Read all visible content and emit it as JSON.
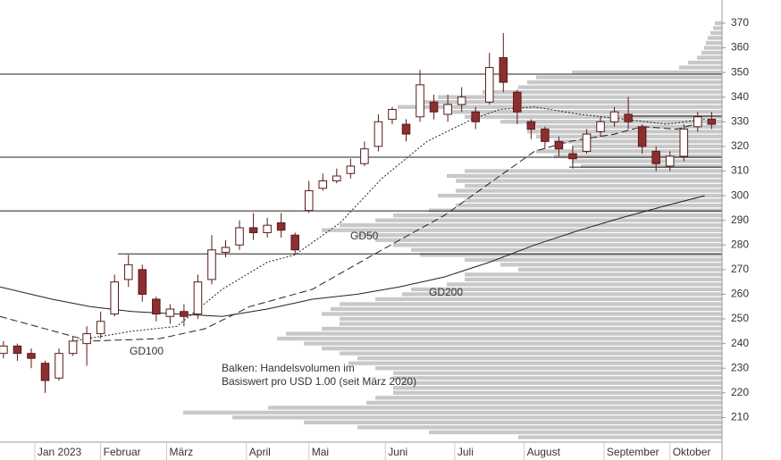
{
  "chart_data": {
    "type": "candlestick",
    "xlim": [
      0,
      208
    ],
    "ylim": [
      200,
      379.4
    ],
    "xticks": [
      {
        "value": 10,
        "label": "Jan 2023"
      },
      {
        "value": 29,
        "label": "Februar"
      },
      {
        "value": 48,
        "label": "März"
      },
      {
        "value": 71,
        "label": "April"
      },
      {
        "value": 89,
        "label": "Mai"
      },
      {
        "value": 111,
        "label": "Juni"
      },
      {
        "value": 131,
        "label": "Juli"
      },
      {
        "value": 151,
        "label": "August"
      },
      {
        "value": 174,
        "label": "September"
      },
      {
        "value": 193,
        "label": "Oktober"
      }
    ],
    "yticks": [
      210,
      220,
      230,
      240,
      250,
      260,
      270,
      280,
      290,
      300,
      310,
      320,
      330,
      340,
      350,
      360,
      370
    ],
    "up_color": "#ffffff",
    "down_color": "#8b2f2f",
    "candle_outline": "#5a1a1a",
    "candles": {
      "x": [
        1,
        5,
        9,
        13,
        17,
        21,
        25,
        29,
        33,
        37,
        41,
        45,
        49,
        53,
        57,
        61,
        65,
        69,
        73,
        77,
        81,
        85,
        89,
        93,
        97,
        101,
        105,
        109,
        113,
        117,
        121,
        125,
        129,
        133,
        137,
        141,
        145,
        149,
        153,
        157,
        161,
        165,
        169,
        173,
        177,
        181,
        185,
        189,
        193,
        197,
        201,
        205
      ],
      "open": [
        236,
        239,
        236,
        232,
        226,
        236,
        240,
        244,
        252,
        266,
        270,
        258,
        251,
        253,
        252,
        266,
        277,
        280,
        287,
        285,
        289,
        284,
        294,
        303,
        306,
        309,
        313,
        320,
        331,
        329,
        332,
        338,
        333,
        337,
        334,
        338,
        356,
        342,
        330,
        327,
        322,
        317,
        318,
        326,
        330,
        333,
        328,
        318,
        312,
        316,
        328,
        331
      ],
      "high": [
        241,
        240,
        238,
        233,
        238,
        243,
        247,
        253,
        268,
        276,
        272,
        259,
        256,
        256,
        268,
        284,
        282,
        290,
        293,
        291,
        293,
        285,
        306,
        309,
        311,
        315,
        322,
        333,
        336,
        331,
        351,
        341,
        341,
        344,
        336,
        358,
        366,
        343,
        331,
        328,
        324,
        320,
        327,
        332,
        336,
        340,
        329,
        320,
        318,
        329,
        334,
        334
      ],
      "low": [
        234,
        233,
        230,
        220,
        225,
        235,
        231,
        242,
        251,
        263,
        257,
        249,
        248,
        247,
        250,
        264,
        275,
        278,
        282,
        283,
        283,
        276,
        293,
        302,
        305,
        307,
        312,
        318,
        329,
        322,
        330,
        331,
        330,
        334,
        327,
        337,
        342,
        329,
        323,
        319,
        316,
        311,
        317,
        324,
        328,
        327,
        317,
        310,
        310,
        314,
        326,
        327
      ],
      "close": [
        239,
        236,
        234,
        225,
        236,
        241,
        244,
        249,
        265,
        272,
        260,
        252,
        254,
        251,
        265,
        278,
        279,
        287,
        285,
        288,
        286,
        278,
        302,
        306,
        308,
        312,
        319,
        330,
        335,
        325,
        345,
        334,
        337,
        340,
        330,
        352,
        346,
        334,
        327,
        322,
        319,
        315,
        325,
        330,
        334,
        330,
        320,
        313,
        316,
        327,
        332,
        329
      ]
    },
    "series": [
      {
        "name": "GD50",
        "color": "#222222",
        "dash": "2,2",
        "x": [
          21,
          38,
          51,
          64,
          77,
          85,
          98,
          110,
          123,
          136,
          144,
          154,
          167,
          180,
          192,
          203
        ],
        "values": [
          241,
          245,
          247,
          262,
          273,
          276,
          289,
          307,
          322,
          331,
          335,
          336,
          333,
          331,
          329,
          331
        ]
      },
      {
        "name": "GD100",
        "color": "#222222",
        "dash": "8,4",
        "x": [
          0,
          26,
          46,
          59,
          72,
          90,
          110,
          128,
          141,
          154,
          164,
          177,
          185,
          195,
          203
        ],
        "values": [
          251,
          241,
          242,
          246,
          255,
          262,
          278,
          292,
          305,
          318,
          322,
          325,
          328,
          327,
          330
        ]
      },
      {
        "name": "GD200",
        "color": "#222222",
        "dash": "none",
        "x": [
          0,
          15,
          26,
          38,
          51,
          64,
          77,
          90,
          103,
          115,
          128,
          141,
          154,
          167,
          179,
          192,
          203
        ],
        "values": [
          263,
          258,
          255,
          253,
          252,
          251,
          254,
          258,
          260,
          263,
          267,
          273,
          280,
          286,
          291,
          296,
          300
        ]
      }
    ],
    "levels": [
      {
        "price": 349.3,
        "from": 0
      },
      {
        "price": 332.3,
        "from": 182
      },
      {
        "price": 315.6,
        "from": 0
      },
      {
        "price": 311.6,
        "from": 164
      },
      {
        "price": 293.8,
        "from": 0
      },
      {
        "price": 276.4,
        "from": 34
      }
    ],
    "volume_profile": {
      "color": "#c8c8c8",
      "prices": [
        202,
        204,
        206,
        208,
        210,
        212,
        214,
        216,
        218,
        220,
        222,
        224,
        226,
        228,
        230,
        232,
        234,
        236,
        238,
        240,
        242,
        244,
        246,
        248,
        250,
        252,
        254,
        256,
        258,
        260,
        262,
        264,
        266,
        268,
        270,
        272,
        274,
        276,
        278,
        280,
        282,
        284,
        286,
        288,
        290,
        292,
        294,
        296,
        298,
        300,
        302,
        304,
        306,
        308,
        310,
        312,
        314,
        316,
        318,
        320,
        322,
        324,
        326,
        328,
        330,
        332,
        334,
        336,
        338,
        340,
        342,
        344,
        346,
        348,
        350,
        352,
        354,
        356,
        358,
        360,
        362,
        364,
        366,
        368,
        370
      ],
      "volumes": [
        228,
        328,
        408,
        468,
        548,
        603,
        508,
        398,
        388,
        368,
        368,
        358,
        368,
        368,
        388,
        418,
        408,
        428,
        448,
        468,
        498,
        488,
        448,
        428,
        428,
        448,
        438,
        428,
        388,
        358,
        348,
        308,
        288,
        288,
        228,
        248,
        288,
        338,
        348,
        368,
        388,
        408,
        448,
        428,
        388,
        368,
        328,
        298,
        288,
        318,
        298,
        288,
        298,
        308,
        288,
        158,
        168,
        188,
        208,
        168,
        188,
        208,
        218,
        208,
        248,
        288,
        308,
        363,
        338,
        318,
        268,
        228,
        218,
        208,
        168,
        48,
        38,
        28,
        23,
        20,
        18,
        16,
        13,
        10,
        8
      ]
    },
    "annotation": [
      "Balken: Handelsvolumen im",
      "Basiswert pro USD 1.00 (seit März 2020)"
    ]
  }
}
